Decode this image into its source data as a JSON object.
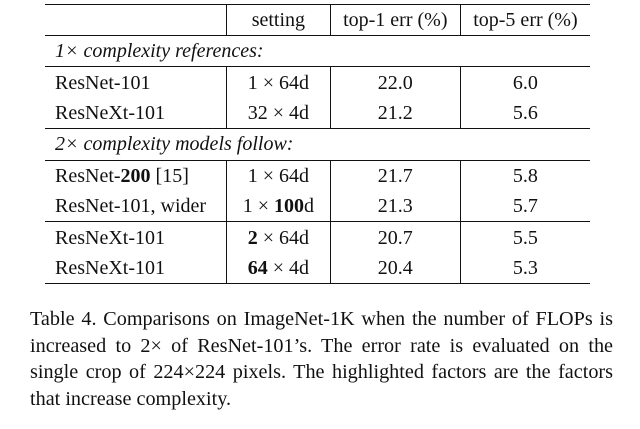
{
  "table": {
    "headers": [
      "",
      "setting",
      "top-1 err (%)",
      "top-5 err (%)"
    ],
    "section1_label": "1× complexity references:",
    "section2_label": "2× complexity models follow:",
    "rows": [
      {
        "model": "ResNet-101",
        "model_bold": "",
        "model_tail": "",
        "set_a": "1 × 64d",
        "set_a_bold": "",
        "set_b": "",
        "set_b_tail": "",
        "top1": "22.0",
        "top5": "6.0"
      },
      {
        "model": "ResNeXt-101",
        "model_bold": "",
        "model_tail": "",
        "set_a": "32 × 4d",
        "set_a_bold": "",
        "set_b": "",
        "set_b_tail": "",
        "top1": "21.2",
        "top5": "5.6"
      },
      {
        "model": "ResNet-",
        "model_bold": "200",
        "model_tail": " [15]",
        "set_a": "1 × 64d",
        "set_a_bold": "",
        "set_b": "",
        "set_b_tail": "",
        "top1": "21.7",
        "top5": "5.8"
      },
      {
        "model": "ResNet-101, wider",
        "model_bold": "",
        "model_tail": "",
        "set_a": "1 × ",
        "set_a_bold": "",
        "set_b": "100",
        "set_b_tail": "d",
        "top1": "21.3",
        "top5": "5.7"
      },
      {
        "model": "ResNeXt-101",
        "model_bold": "",
        "model_tail": "",
        "set_a": "",
        "set_a_bold": "2",
        "set_b": "",
        "set_b_tail": " × 64d",
        "top1": "20.7",
        "top5": "5.5"
      },
      {
        "model": "ResNeXt-101",
        "model_bold": "",
        "model_tail": "",
        "set_a": "",
        "set_a_bold": "64",
        "set_b": "",
        "set_b_tail": " × 4d",
        "top1": "20.4",
        "top5": "5.3"
      }
    ]
  },
  "caption": "Table 4. Comparisons on ImageNet-1K when the number of FLOPs is increased to 2× of ResNet-101’s. The error rate is evaluated on the single crop of 224×224 pixels. The highlighted factors are the factors that increase complexity."
}
